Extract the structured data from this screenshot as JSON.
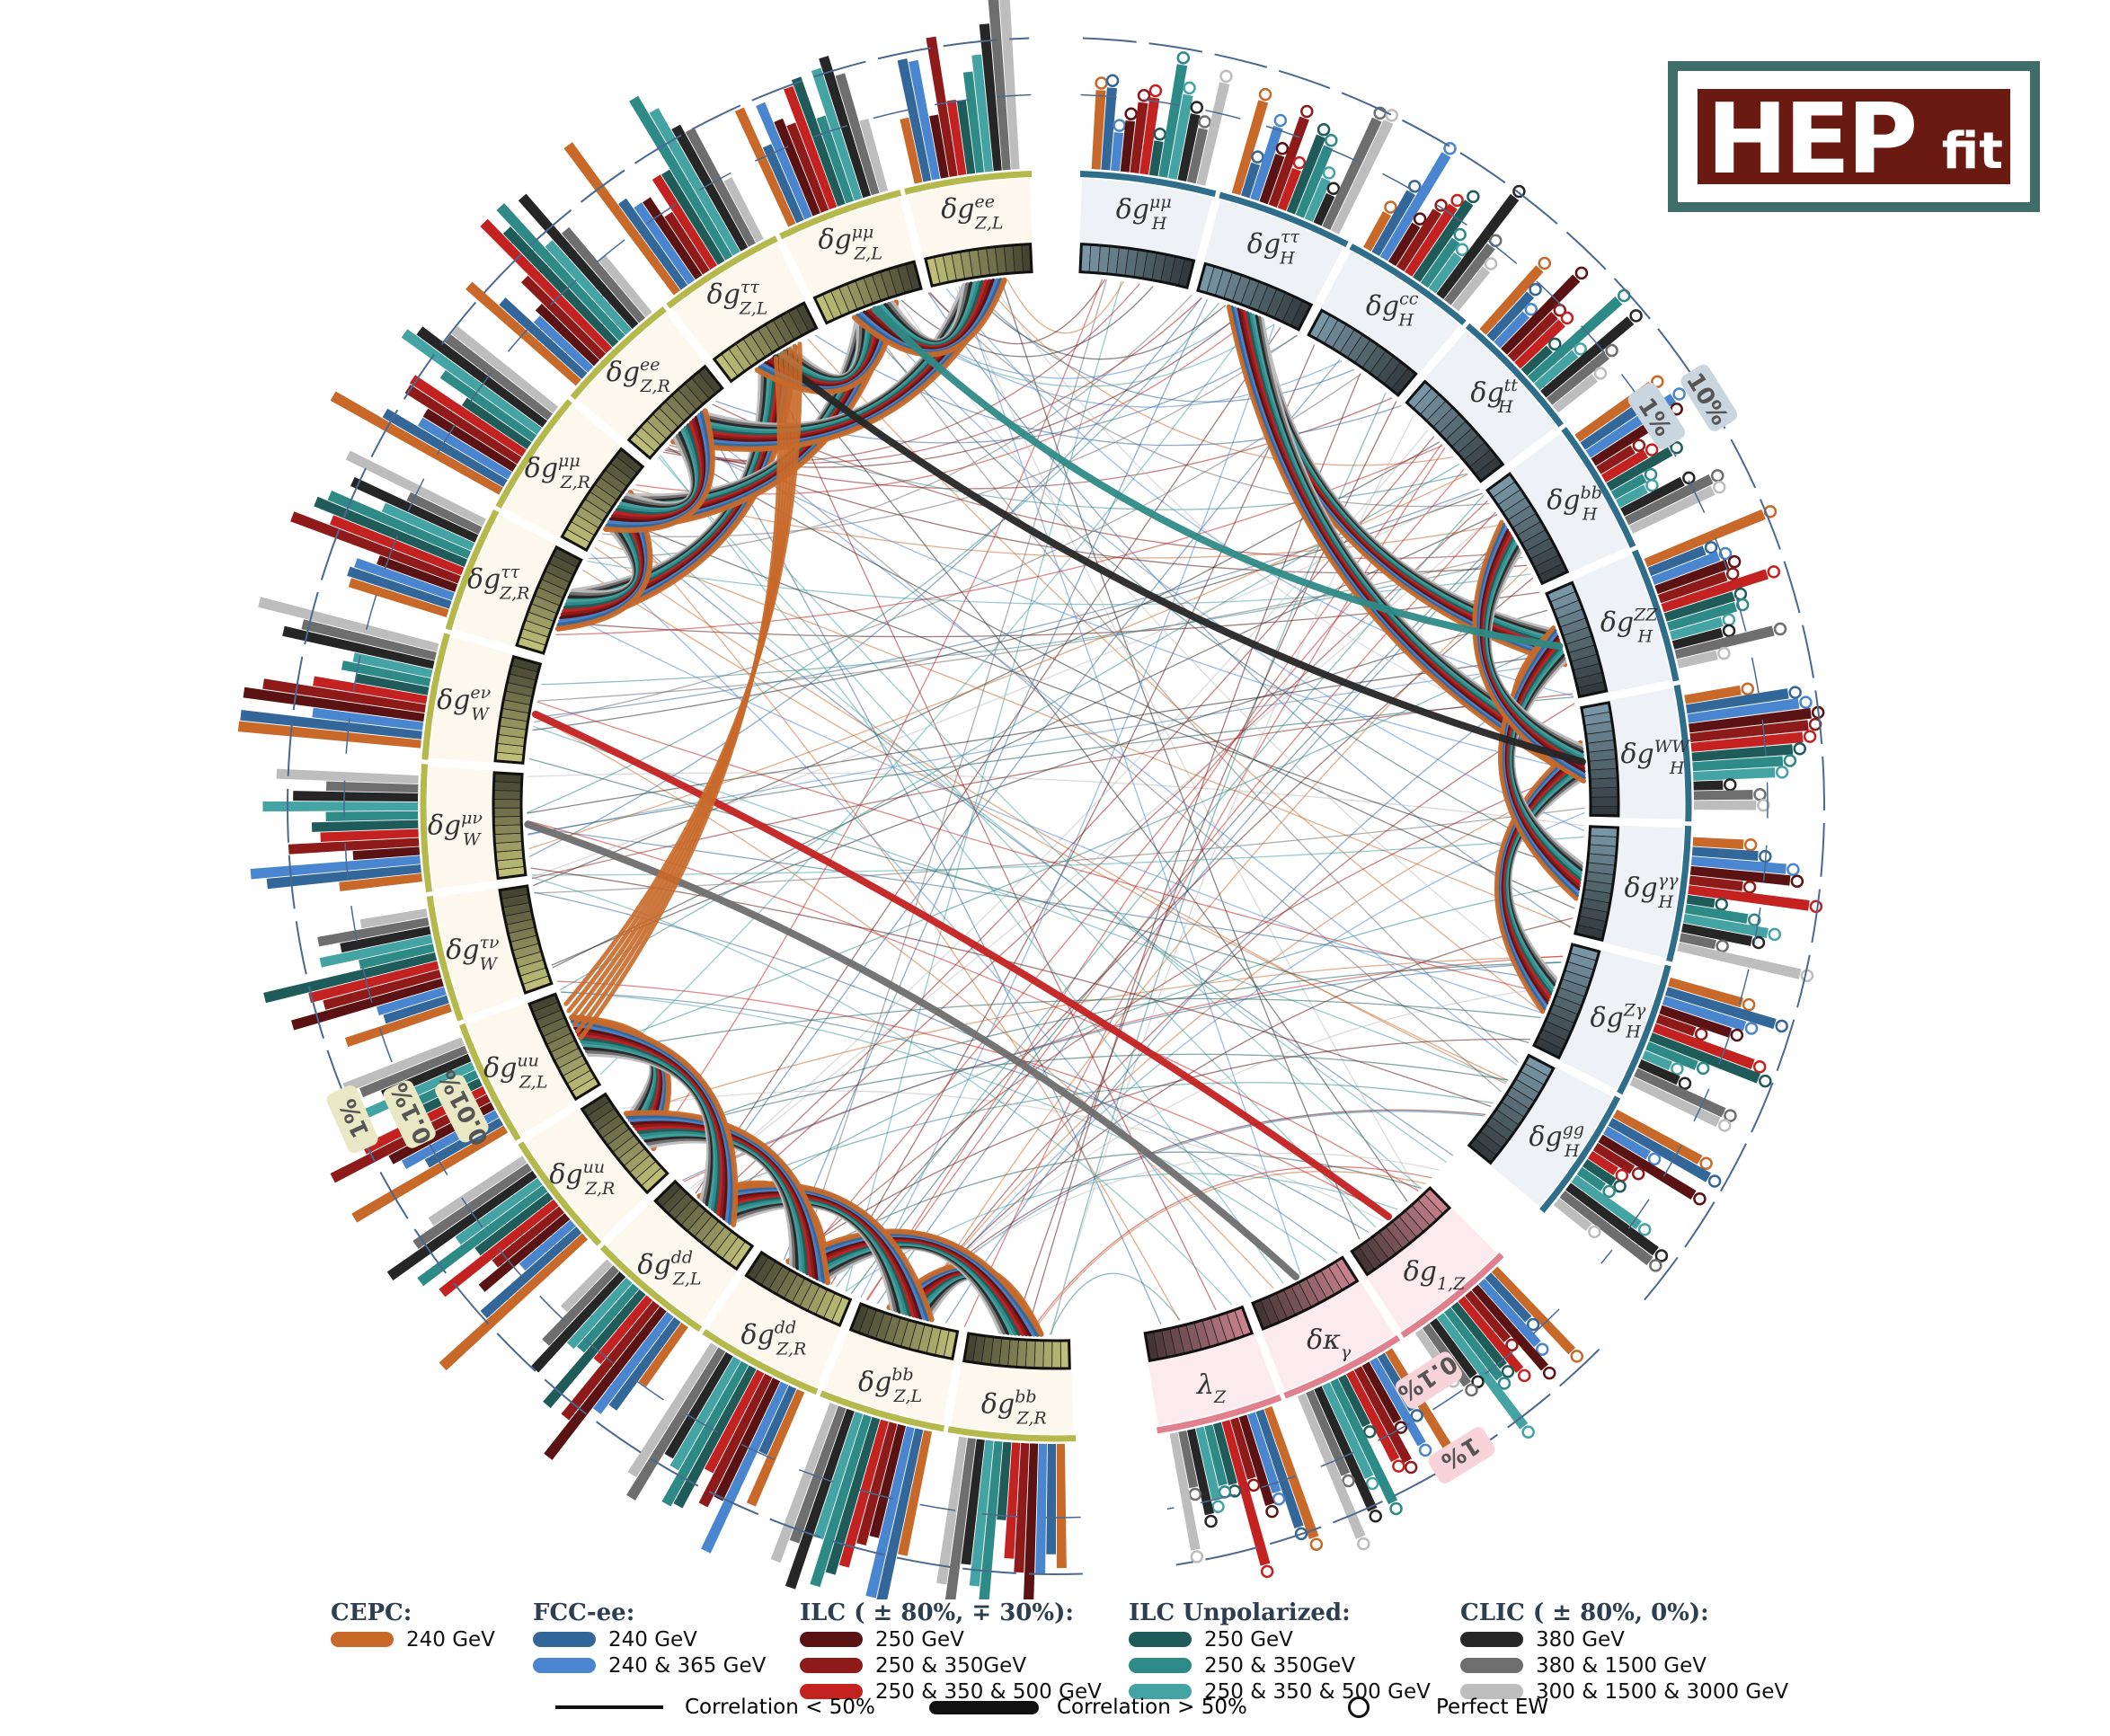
{
  "logo": {
    "big": "HEP",
    "small": "fit"
  },
  "chart_data": {
    "type": "chord",
    "groups": {
      "ew": [
        "δg_{Z,R}^{bb}",
        "δg_{Z,L}^{bb}",
        "δg_{Z,R}^{dd}",
        "δg_{Z,L}^{dd}",
        "δg_{Z,R}^{uu}",
        "δg_{Z,L}^{uu}",
        "δg_W^{τν}",
        "δg_W^{μν}",
        "δg_W^{eν}",
        "δg_{Z,R}^{ττ}",
        "δg_{Z,R}^{μμ}",
        "δg_{Z,R}^{ee}",
        "δg_{Z,L}^{ττ}",
        "δg_{Z,L}^{μμ}",
        "δg_{Z,L}^{ee}"
      ],
      "higgs": [
        "δg_H^{μμ}",
        "δg_H^{ττ}",
        "δg_H^{cc}",
        "δg_H^{tt}",
        "δg_H^{bb}",
        "δg_H^{ZZ}",
        "δg_H^{WW}",
        "δg_H^{γγ}",
        "δg_H^{Zγ}",
        "δg_H^{gg}"
      ],
      "tgc": [
        "δg_{1,Z}",
        "δκ_γ",
        "λ_Z"
      ]
    },
    "percent_labels": {
      "ew": [
        "1%",
        "0.1%",
        "0.01%"
      ],
      "higgs": [
        "10%",
        "1%"
      ],
      "tgc": [
        "0.1%",
        "1%"
      ]
    },
    "colors": {
      "ew_ring": "#b5b84a",
      "higgs_ring": "#2e6e8a",
      "tgc_ring": "#e0808f",
      "ew_fill": "#fdf8ee",
      "higgs_fill": "#eef2f6",
      "tgc_fill": "#fcebee"
    }
  },
  "legend": {
    "groups": [
      {
        "title": "CEPC:",
        "items": [
          {
            "label": "240 GeV",
            "color": "#c8692a"
          }
        ]
      },
      {
        "title": "FCC-ee:",
        "items": [
          {
            "label": "240 GeV",
            "color": "#336699"
          },
          {
            "label": "240 & 365 GeV",
            "color": "#4a86cf"
          }
        ]
      },
      {
        "title": "ILC ( ± 80%, ∓ 30%):",
        "items": [
          {
            "label": "250 GeV",
            "color": "#5a1212"
          },
          {
            "label": "250 & 350GeV",
            "color": "#8e1a1a"
          },
          {
            "label": "250 & 350 & 500 GeV",
            "color": "#c42121"
          }
        ]
      },
      {
        "title": "ILC Unpolarized:",
        "items": [
          {
            "label": "250 GeV",
            "color": "#1f5c59"
          },
          {
            "label": "250 & 350GeV",
            "color": "#2e8a86"
          },
          {
            "label": "250 & 350 & 500 GeV",
            "color": "#44a3a3"
          }
        ]
      },
      {
        "title": "CLIC ( ± 80%, 0%):",
        "items": [
          {
            "label": "380 GeV",
            "color": "#262626"
          },
          {
            "label": "380 & 1500 GeV",
            "color": "#6e6e6e"
          },
          {
            "label": "300 & 1500 & 3000 GeV",
            "color": "#bdbdbd"
          }
        ]
      }
    ],
    "corr_low": "Correlation < 50%",
    "corr_high": "Correlation > 50%",
    "perfect_ew": "Perfect EW"
  }
}
